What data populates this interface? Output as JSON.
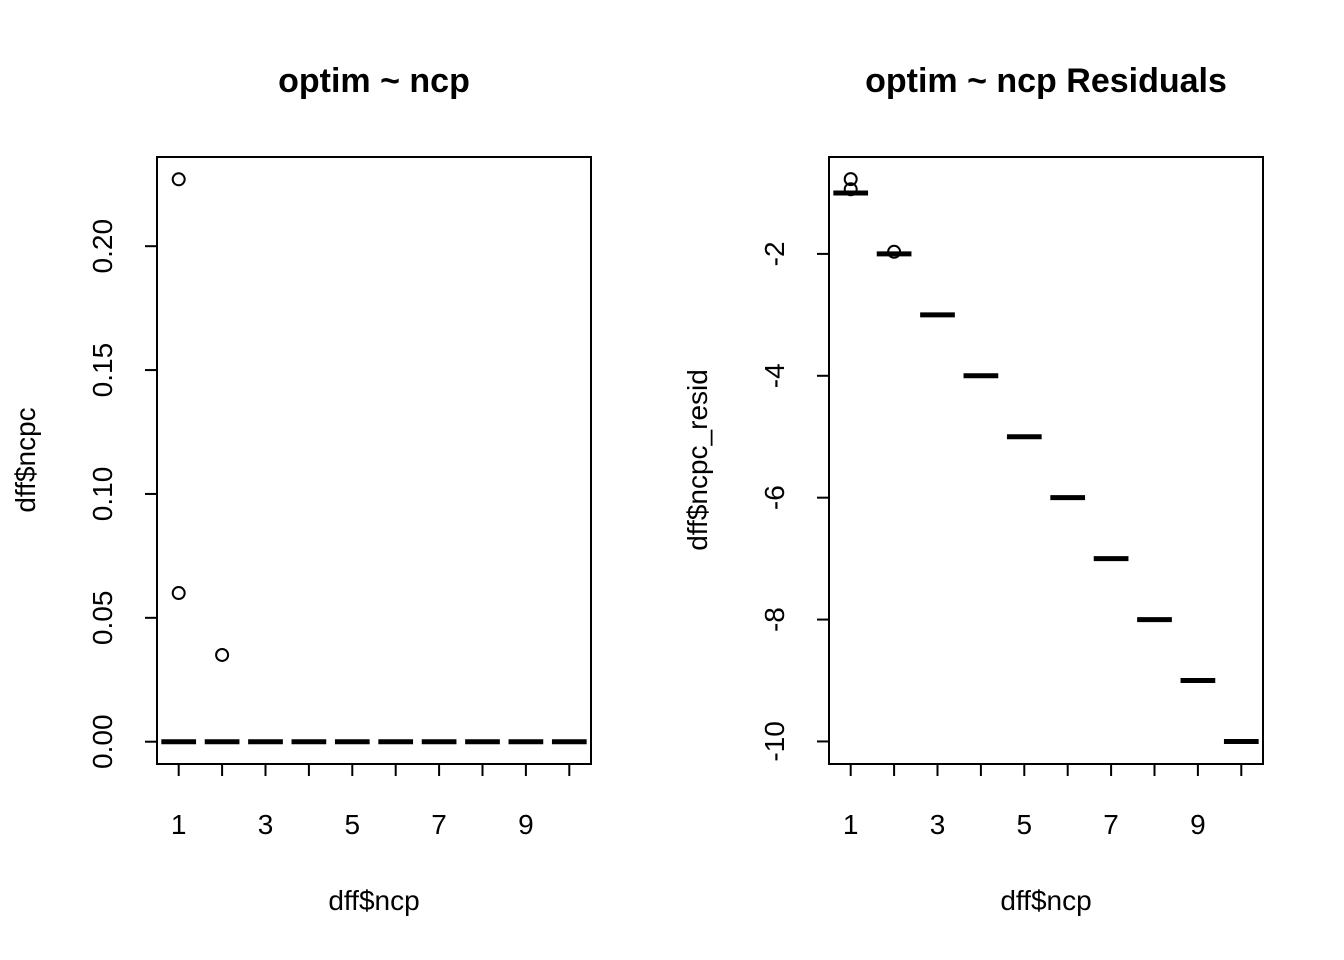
{
  "chart_data": [
    {
      "type": "boxplot",
      "title": "optim ~ ncp",
      "xlabel": "dff$ncp",
      "ylabel": "dff$ncpc",
      "categories": [
        "1",
        "2",
        "3",
        "4",
        "5",
        "6",
        "7",
        "8",
        "9",
        "10"
      ],
      "x_tick_labels": [
        "1",
        "3",
        "5",
        "7",
        "9"
      ],
      "y_tick_labels": [
        "0.00",
        "0.05",
        "0.10",
        "0.15",
        "0.20"
      ],
      "y_ticks": [
        0.0,
        0.05,
        0.1,
        0.15,
        0.2
      ],
      "ylim": [
        -0.009,
        0.236
      ],
      "medians": [
        0,
        0,
        0,
        0,
        0,
        0,
        0,
        0,
        0,
        0
      ],
      "outliers": [
        {
          "x": 1,
          "y": 0.227
        },
        {
          "x": 1,
          "y": 0.06
        },
        {
          "x": 2,
          "y": 0.035
        }
      ],
      "grid": false
    },
    {
      "type": "boxplot",
      "title": "optim ~ ncp Residuals",
      "xlabel": "dff$ncp",
      "ylabel": "dff$ncpc_resid",
      "categories": [
        "1",
        "2",
        "3",
        "4",
        "5",
        "6",
        "7",
        "8",
        "9",
        "10"
      ],
      "x_tick_labels": [
        "1",
        "3",
        "5",
        "7",
        "9"
      ],
      "y_tick_labels": [
        "-10",
        "-8",
        "-6",
        "-4",
        "-2"
      ],
      "y_ticks": [
        -10,
        -8,
        -6,
        -4,
        -2
      ],
      "ylim": [
        -10.37,
        -0.41
      ],
      "medians": [
        -1,
        -2,
        -3,
        -4,
        -5,
        -6,
        -7,
        -8,
        -9,
        -10
      ],
      "outliers": [
        {
          "x": 1,
          "y": -0.773
        },
        {
          "x": 1,
          "y": -0.94
        },
        {
          "x": 2,
          "y": -1.965
        }
      ],
      "grid": false
    }
  ]
}
